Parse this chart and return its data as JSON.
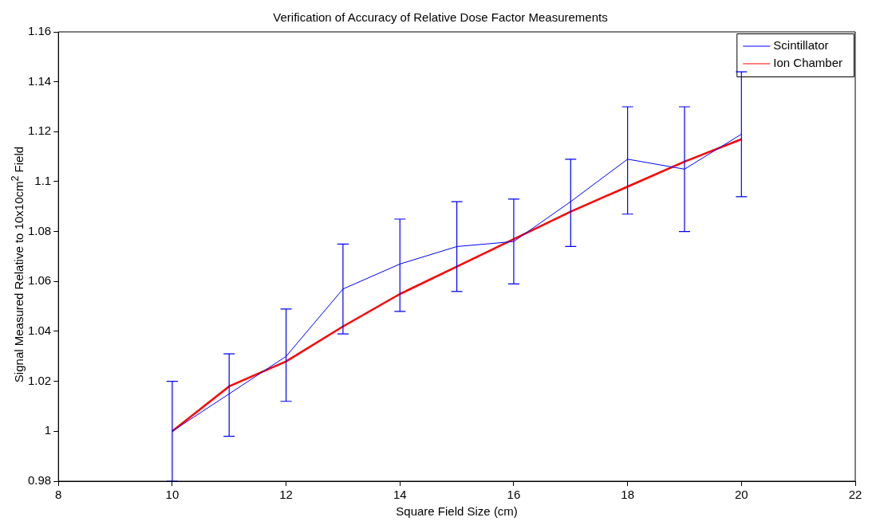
{
  "chart_data": {
    "type": "line",
    "title": "Verification of Accuracy of Relative Dose Factor Measurements",
    "xlabel": "Square Field Size (cm)",
    "ylabel": "Signal Measured Relative to 10x10cm$^{2}$ Field",
    "x": [
      10,
      11,
      12,
      13,
      14,
      15,
      16,
      17,
      18,
      19,
      20
    ],
    "series": [
      {
        "name": "Scintillator",
        "color": "#0000ff",
        "values": [
          1.0,
          1.015,
          1.03,
          1.057,
          1.067,
          1.074,
          1.076,
          1.092,
          1.109,
          1.105,
          1.119
        ],
        "errors": [
          [
            0.98,
            1.02
          ],
          [
            0.998,
            1.031
          ],
          [
            1.012,
            1.049
          ],
          [
            1.039,
            1.075
          ],
          [
            1.048,
            1.085
          ],
          [
            1.056,
            1.092
          ],
          [
            1.059,
            1.093
          ],
          [
            1.074,
            1.109
          ],
          [
            1.087,
            1.13
          ],
          [
            1.08,
            1.13
          ],
          [
            1.094,
            1.144
          ]
        ]
      },
      {
        "name": "Ion Chamber",
        "color": "#ff0000",
        "values": [
          1.0,
          1.018,
          1.028,
          1.042,
          1.055,
          1.066,
          1.077,
          1.088,
          1.098,
          1.108,
          1.117
        ]
      }
    ],
    "xlim": [
      8,
      22
    ],
    "xticks": [
      8,
      10,
      12,
      14,
      16,
      18,
      20,
      22
    ],
    "ylim": [
      0.98,
      1.16
    ],
    "yticks": [
      {
        "value": 0.98,
        "label": "0.98"
      },
      {
        "value": 1,
        "label": "1"
      },
      {
        "value": 1.02,
        "label": "1.02"
      },
      {
        "value": 1.04,
        "label": "1.04"
      },
      {
        "value": 1.06,
        "label": "1.06"
      },
      {
        "value": 1.08,
        "label": "1.08"
      },
      {
        "value": 1.1,
        "label": "1.1"
      },
      {
        "value": 1.12,
        "label": "1.12"
      },
      {
        "value": 1.14,
        "label": "1.14"
      },
      {
        "value": 1.16,
        "label": "1.16"
      }
    ],
    "grid": false,
    "legend": "top right",
    "marker": "none",
    "line_style": "solid"
  }
}
